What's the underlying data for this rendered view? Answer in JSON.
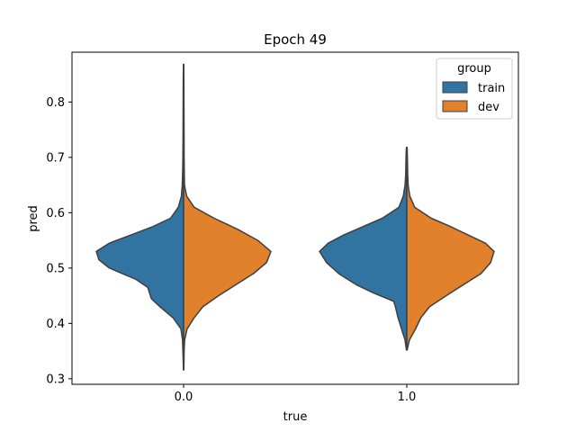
{
  "chart_data": {
    "type": "violin",
    "title": "Epoch 49",
    "xlabel": "true",
    "ylabel": "pred",
    "categories": [
      "0.0",
      "1.0"
    ],
    "y_ticks": [
      0.3,
      0.4,
      0.5,
      0.6,
      0.7,
      0.8
    ],
    "y_tick_labels": [
      "0.3",
      "0.4",
      "0.5",
      "0.6",
      "0.7",
      "0.8"
    ],
    "ylim": [
      0.29,
      0.89
    ],
    "grid": false,
    "split": true,
    "legend": {
      "title": "group",
      "placement": "top-right",
      "entries": [
        {
          "label": "train",
          "color": "#3274a1"
        },
        {
          "label": "dev",
          "color": "#e1812c"
        }
      ]
    },
    "series": [
      {
        "name": "train",
        "color": "#3274a1",
        "side": "left",
        "violins": [
          {
            "category": "0.0",
            "min": 0.316,
            "max": 0.868,
            "profile": [
              [
                0.316,
                0.002
              ],
              [
                0.33,
                0.004
              ],
              [
                0.35,
                0.008
              ],
              [
                0.37,
                0.012
              ],
              [
                0.39,
                0.03
              ],
              [
                0.41,
                0.12
              ],
              [
                0.43,
                0.27
              ],
              [
                0.445,
                0.37
              ],
              [
                0.455,
                0.39
              ],
              [
                0.465,
                0.41
              ],
              [
                0.48,
                0.55
              ],
              [
                0.5,
                0.85
              ],
              [
                0.515,
                0.97
              ],
              [
                0.53,
                1.0
              ],
              [
                0.545,
                0.85
              ],
              [
                0.56,
                0.6
              ],
              [
                0.575,
                0.35
              ],
              [
                0.59,
                0.15
              ],
              [
                0.61,
                0.06
              ],
              [
                0.63,
                0.025
              ],
              [
                0.65,
                0.015
              ],
              [
                0.68,
                0.01
              ],
              [
                0.7,
                0.008
              ],
              [
                0.75,
                0.006
              ],
              [
                0.8,
                0.005
              ],
              [
                0.84,
                0.004
              ],
              [
                0.868,
                0.002
              ]
            ]
          },
          {
            "category": "1.0",
            "min": 0.352,
            "max": 0.718,
            "profile": [
              [
                0.352,
                0.004
              ],
              [
                0.37,
                0.02
              ],
              [
                0.39,
                0.06
              ],
              [
                0.41,
                0.1
              ],
              [
                0.43,
                0.13
              ],
              [
                0.44,
                0.15
              ],
              [
                0.455,
                0.38
              ],
              [
                0.47,
                0.58
              ],
              [
                0.49,
                0.78
              ],
              [
                0.51,
                0.92
              ],
              [
                0.53,
                1.0
              ],
              [
                0.545,
                0.9
              ],
              [
                0.56,
                0.72
              ],
              [
                0.575,
                0.5
              ],
              [
                0.59,
                0.28
              ],
              [
                0.61,
                0.09
              ],
              [
                0.63,
                0.04
              ],
              [
                0.65,
                0.02
              ],
              [
                0.67,
                0.012
              ],
              [
                0.69,
                0.01
              ],
              [
                0.705,
                0.008
              ],
              [
                0.718,
                0.004
              ]
            ]
          }
        ]
      },
      {
        "name": "dev",
        "color": "#e1812c",
        "side": "right",
        "violins": [
          {
            "category": "0.0",
            "min": 0.316,
            "max": 0.868,
            "profile": [
              [
                0.316,
                0.002
              ],
              [
                0.33,
                0.004
              ],
              [
                0.35,
                0.006
              ],
              [
                0.37,
                0.012
              ],
              [
                0.39,
                0.04
              ],
              [
                0.41,
                0.12
              ],
              [
                0.43,
                0.22
              ],
              [
                0.45,
                0.4
              ],
              [
                0.47,
                0.6
              ],
              [
                0.49,
                0.8
              ],
              [
                0.51,
                0.95
              ],
              [
                0.53,
                1.0
              ],
              [
                0.55,
                0.85
              ],
              [
                0.57,
                0.62
              ],
              [
                0.59,
                0.35
              ],
              [
                0.61,
                0.12
              ],
              [
                0.63,
                0.035
              ],
              [
                0.65,
                0.01
              ],
              [
                0.7,
                0.006
              ],
              [
                0.75,
                0.005
              ],
              [
                0.8,
                0.004
              ],
              [
                0.868,
                0.002
              ]
            ]
          },
          {
            "category": "1.0",
            "min": 0.352,
            "max": 0.718,
            "profile": [
              [
                0.352,
                0.004
              ],
              [
                0.37,
                0.03
              ],
              [
                0.39,
                0.1
              ],
              [
                0.41,
                0.16
              ],
              [
                0.43,
                0.26
              ],
              [
                0.45,
                0.45
              ],
              [
                0.47,
                0.65
              ],
              [
                0.49,
                0.85
              ],
              [
                0.51,
                0.96
              ],
              [
                0.53,
                1.0
              ],
              [
                0.545,
                0.9
              ],
              [
                0.56,
                0.7
              ],
              [
                0.575,
                0.5
              ],
              [
                0.59,
                0.28
              ],
              [
                0.61,
                0.09
              ],
              [
                0.63,
                0.035
              ],
              [
                0.65,
                0.015
              ],
              [
                0.67,
                0.01
              ],
              [
                0.69,
                0.008
              ],
              [
                0.718,
                0.004
              ]
            ]
          }
        ]
      }
    ]
  }
}
